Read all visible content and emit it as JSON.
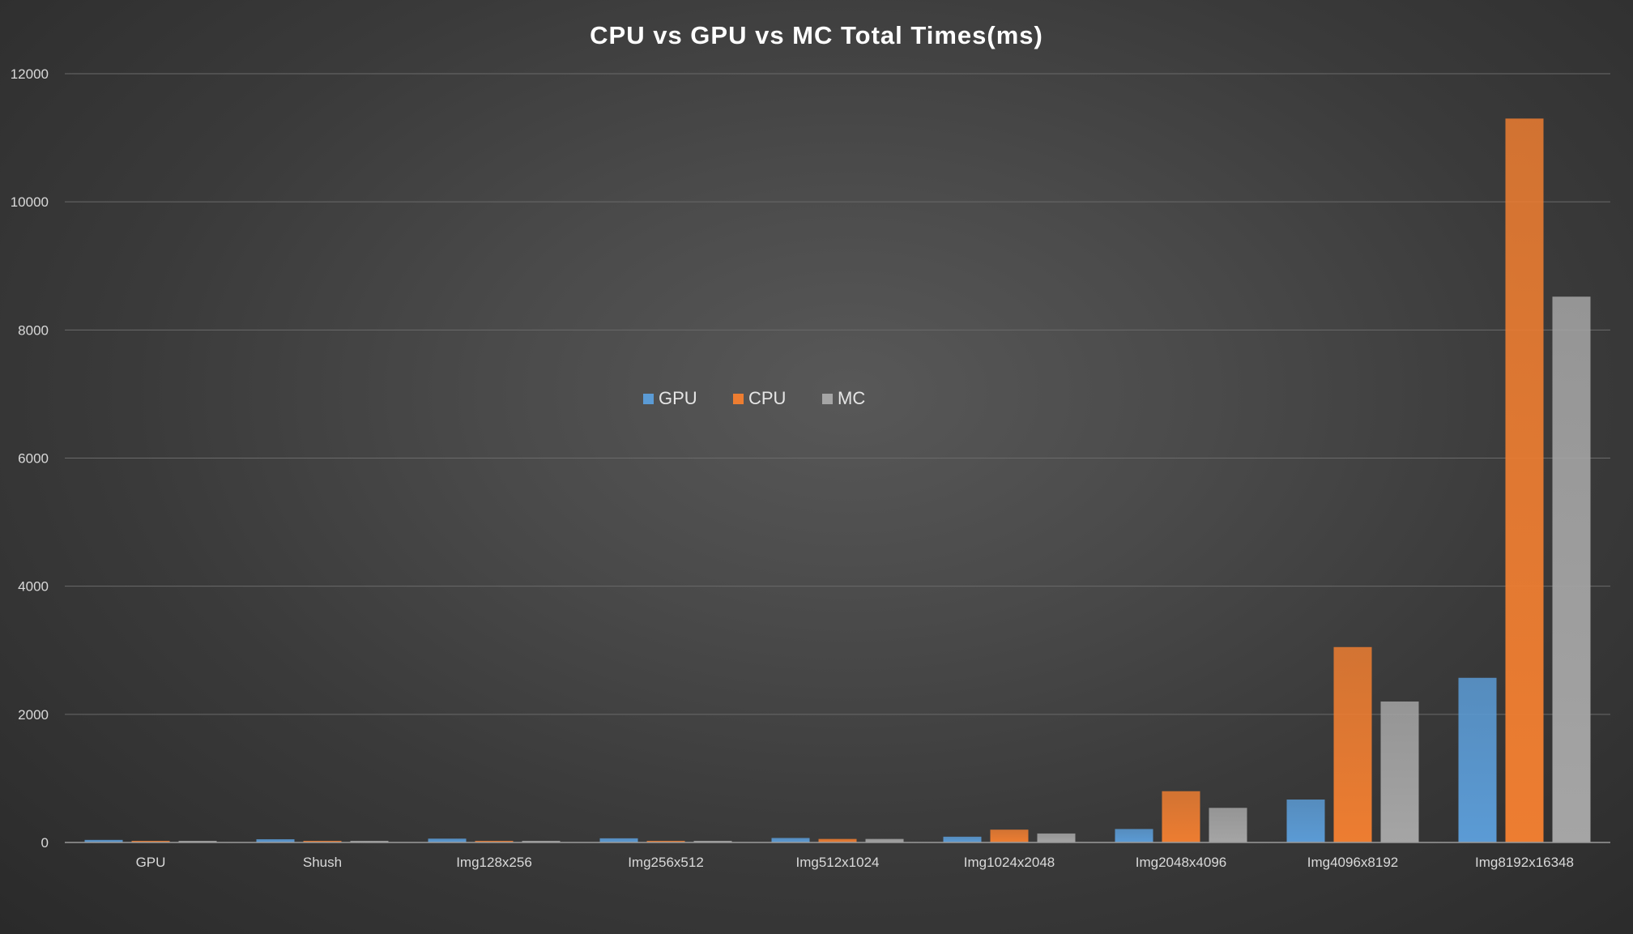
{
  "chart_data": {
    "type": "bar",
    "title": "CPU vs GPU vs MC  Total Times(ms)",
    "xlabel": "",
    "ylabel": "",
    "ylim": [
      0,
      12000
    ],
    "yticks": [
      0,
      2000,
      4000,
      6000,
      8000,
      10000,
      12000
    ],
    "grid": true,
    "legend_position": "center",
    "categories": [
      "GPU",
      "Shush",
      "Img128x256",
      "Img256x512",
      "Img512x1024",
      "Img1024x2048",
      "Img2048x4096",
      "Img4096x8192",
      "Img8192x16348"
    ],
    "series": [
      {
        "name": "GPU",
        "color": "#5b9bd5",
        "values": [
          40,
          50,
          60,
          65,
          70,
          90,
          210,
          670,
          2570
        ]
      },
      {
        "name": "CPU",
        "color": "#ed7d31",
        "values": [
          5,
          5,
          5,
          10,
          55,
          200,
          800,
          3050,
          11300
        ]
      },
      {
        "name": "MC",
        "color": "#a5a5a5",
        "values": [
          5,
          5,
          5,
          10,
          55,
          140,
          540,
          2200,
          8520
        ]
      }
    ]
  }
}
